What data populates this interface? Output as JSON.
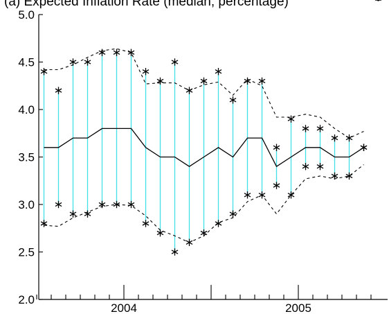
{
  "chart_data": {
    "type": "line",
    "title": "(a) Expected Inflation Rate (median; percentage)",
    "xlabel": "",
    "ylabel": "",
    "ylim": [
      2.0,
      5.0
    ],
    "y_ticks": [
      "2.0",
      "2.5",
      "3.0",
      "3.5",
      "4.0",
      "4.5",
      "5.0"
    ],
    "x_tick_labels": [
      "2004",
      "2005"
    ],
    "x_period_count": 24,
    "x_major_tick_periods": [
      6,
      12,
      18
    ],
    "x_label_periods": [
      6,
      18
    ],
    "last_period_index": 23,
    "grid": false,
    "colors": {
      "range": "#40e0e8",
      "median": "#000000",
      "band": "#000000",
      "marker": "#000000"
    },
    "series": [
      {
        "name": "",
        "role": "max_marker",
        "values": [
          4.4,
          4.2,
          4.5,
          4.5,
          4.6,
          4.6,
          4.6,
          4.4,
          4.3,
          4.5,
          4.2,
          4.3,
          4.4,
          4.1,
          4.3,
          4.3,
          3.6,
          3.9,
          3.8,
          3.8,
          3.7,
          3.7,
          3.6
        ]
      },
      {
        "name": "",
        "role": "min_marker",
        "values": [
          2.8,
          3.0,
          2.9,
          2.9,
          3.0,
          3.0,
          3.0,
          2.8,
          2.7,
          2.5,
          2.6,
          2.7,
          2.8,
          2.9,
          3.1,
          3.1,
          3.2,
          3.1,
          3.4,
          3.4,
          3.3,
          3.3,
          3.6
        ]
      },
      {
        "name": "",
        "role": "median",
        "values": [
          3.6,
          3.6,
          3.7,
          3.7,
          3.8,
          3.8,
          3.8,
          3.6,
          3.5,
          3.5,
          3.4,
          3.5,
          3.6,
          3.5,
          3.7,
          3.7,
          3.4,
          3.5,
          3.6,
          3.6,
          3.5,
          3.5,
          3.6
        ]
      },
      {
        "name": "",
        "role": "upper_band",
        "values": [
          4.42,
          4.42,
          4.47,
          4.55,
          4.62,
          4.64,
          4.6,
          4.27,
          4.28,
          4.28,
          4.2,
          4.26,
          4.29,
          4.15,
          4.32,
          4.25,
          3.92,
          3.92,
          3.95,
          3.92,
          3.8,
          3.7,
          3.77
        ]
      },
      {
        "name": "",
        "role": "lower_band",
        "values": [
          2.78,
          2.77,
          2.86,
          2.92,
          2.98,
          3.0,
          2.99,
          2.88,
          2.73,
          2.67,
          2.6,
          2.67,
          2.81,
          2.86,
          3.03,
          3.1,
          2.9,
          3.1,
          3.27,
          3.3,
          3.27,
          3.3,
          3.42
        ]
      }
    ]
  }
}
